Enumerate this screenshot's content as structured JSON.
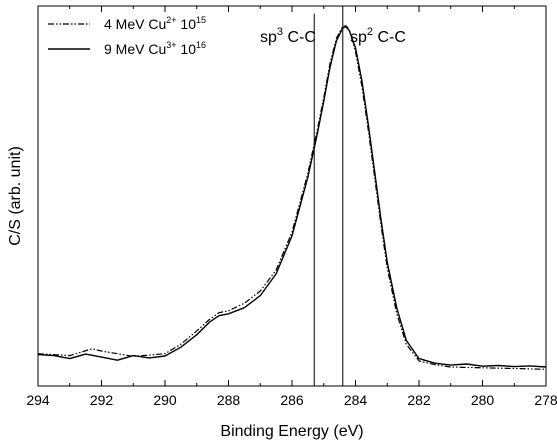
{
  "chart_data": {
    "type": "line",
    "xlabel": "Binding Energy (eV)",
    "ylabel": "C/S (arb. unit)",
    "xlim": [
      294,
      278
    ],
    "x_reversed": true,
    "y_ticks_shown": false,
    "xticks": [
      294,
      292,
      290,
      288,
      286,
      284,
      282,
      280,
      278
    ],
    "xtick_labels": [
      "294",
      "292",
      "290",
      "288",
      "286",
      "284",
      "282",
      "280",
      "278"
    ],
    "ylim": [
      0,
      100
    ],
    "legend_position": "top-left",
    "series": [
      {
        "name": "4 MeV Cu2+ 10^15",
        "legend": {
          "prefix": "4 MeV Cu",
          "sup1": "2+",
          "mid": " 10",
          "sup2": "15"
        },
        "style": "dash-dot-dot",
        "x": [
          294.0,
          293.0,
          292.3,
          292.0,
          291.0,
          290.0,
          289.5,
          289.0,
          288.6,
          288.3,
          288.0,
          287.5,
          287.0,
          286.5,
          286.0,
          285.5,
          285.2,
          285.0,
          284.8,
          284.6,
          284.4,
          284.3,
          284.2,
          284.0,
          283.8,
          283.6,
          283.4,
          283.2,
          283.0,
          282.7,
          282.4,
          282.0,
          281.5,
          281.0,
          280.0,
          279.0,
          278.0
        ],
        "y": [
          8.5,
          8.0,
          9.8,
          9.2,
          7.8,
          8.5,
          11.0,
          14.5,
          17.5,
          19.3,
          19.8,
          21.8,
          25.0,
          30.5,
          40.5,
          56.0,
          67.5,
          76.0,
          85.0,
          91.5,
          94.7,
          94.8,
          93.8,
          88.0,
          79.0,
          67.5,
          55.0,
          42.5,
          31.0,
          19.0,
          11.0,
          6.6,
          5.6,
          5.0,
          4.8,
          4.6,
          4.4
        ]
      },
      {
        "name": "9 MeV Cu3+ 10^16",
        "legend": {
          "prefix": "9 MeV Cu",
          "sup1": "3+",
          "mid": " 10",
          "sup2": "16"
        },
        "style": "solid",
        "x": [
          294.0,
          293.5,
          293.0,
          292.5,
          292.0,
          291.5,
          291.0,
          290.5,
          290.0,
          289.5,
          289.0,
          288.6,
          288.3,
          288.0,
          287.5,
          287.0,
          286.5,
          286.0,
          285.5,
          285.2,
          285.0,
          284.8,
          284.6,
          284.4,
          284.3,
          284.2,
          284.0,
          283.8,
          283.6,
          283.4,
          283.2,
          283.0,
          282.7,
          282.4,
          282.0,
          281.5,
          281.0,
          280.5,
          280.0,
          279.5,
          279.0,
          278.5,
          278.0
        ],
        "y": [
          8.3,
          8.0,
          7.2,
          8.4,
          7.6,
          6.8,
          8.0,
          7.4,
          7.9,
          10.2,
          13.5,
          16.8,
          18.5,
          19.0,
          20.6,
          23.8,
          29.5,
          39.5,
          55.0,
          66.5,
          75.0,
          84.0,
          90.8,
          94.2,
          94.5,
          93.6,
          89.0,
          80.5,
          69.0,
          56.5,
          44.0,
          32.5,
          20.5,
          12.0,
          7.2,
          6.0,
          5.5,
          5.8,
          5.2,
          5.4,
          5.1,
          5.3,
          5.0
        ]
      }
    ],
    "annotations": [
      {
        "id": "sp3",
        "base": "sp",
        "sup": "3",
        "rest": " C-C",
        "x": 285.3,
        "line_y_top": 98.0
      },
      {
        "id": "sp2",
        "base": "sp",
        "sup": "2",
        "rest": " C-C",
        "x": 284.4,
        "line_y_top": 100.0
      }
    ]
  }
}
